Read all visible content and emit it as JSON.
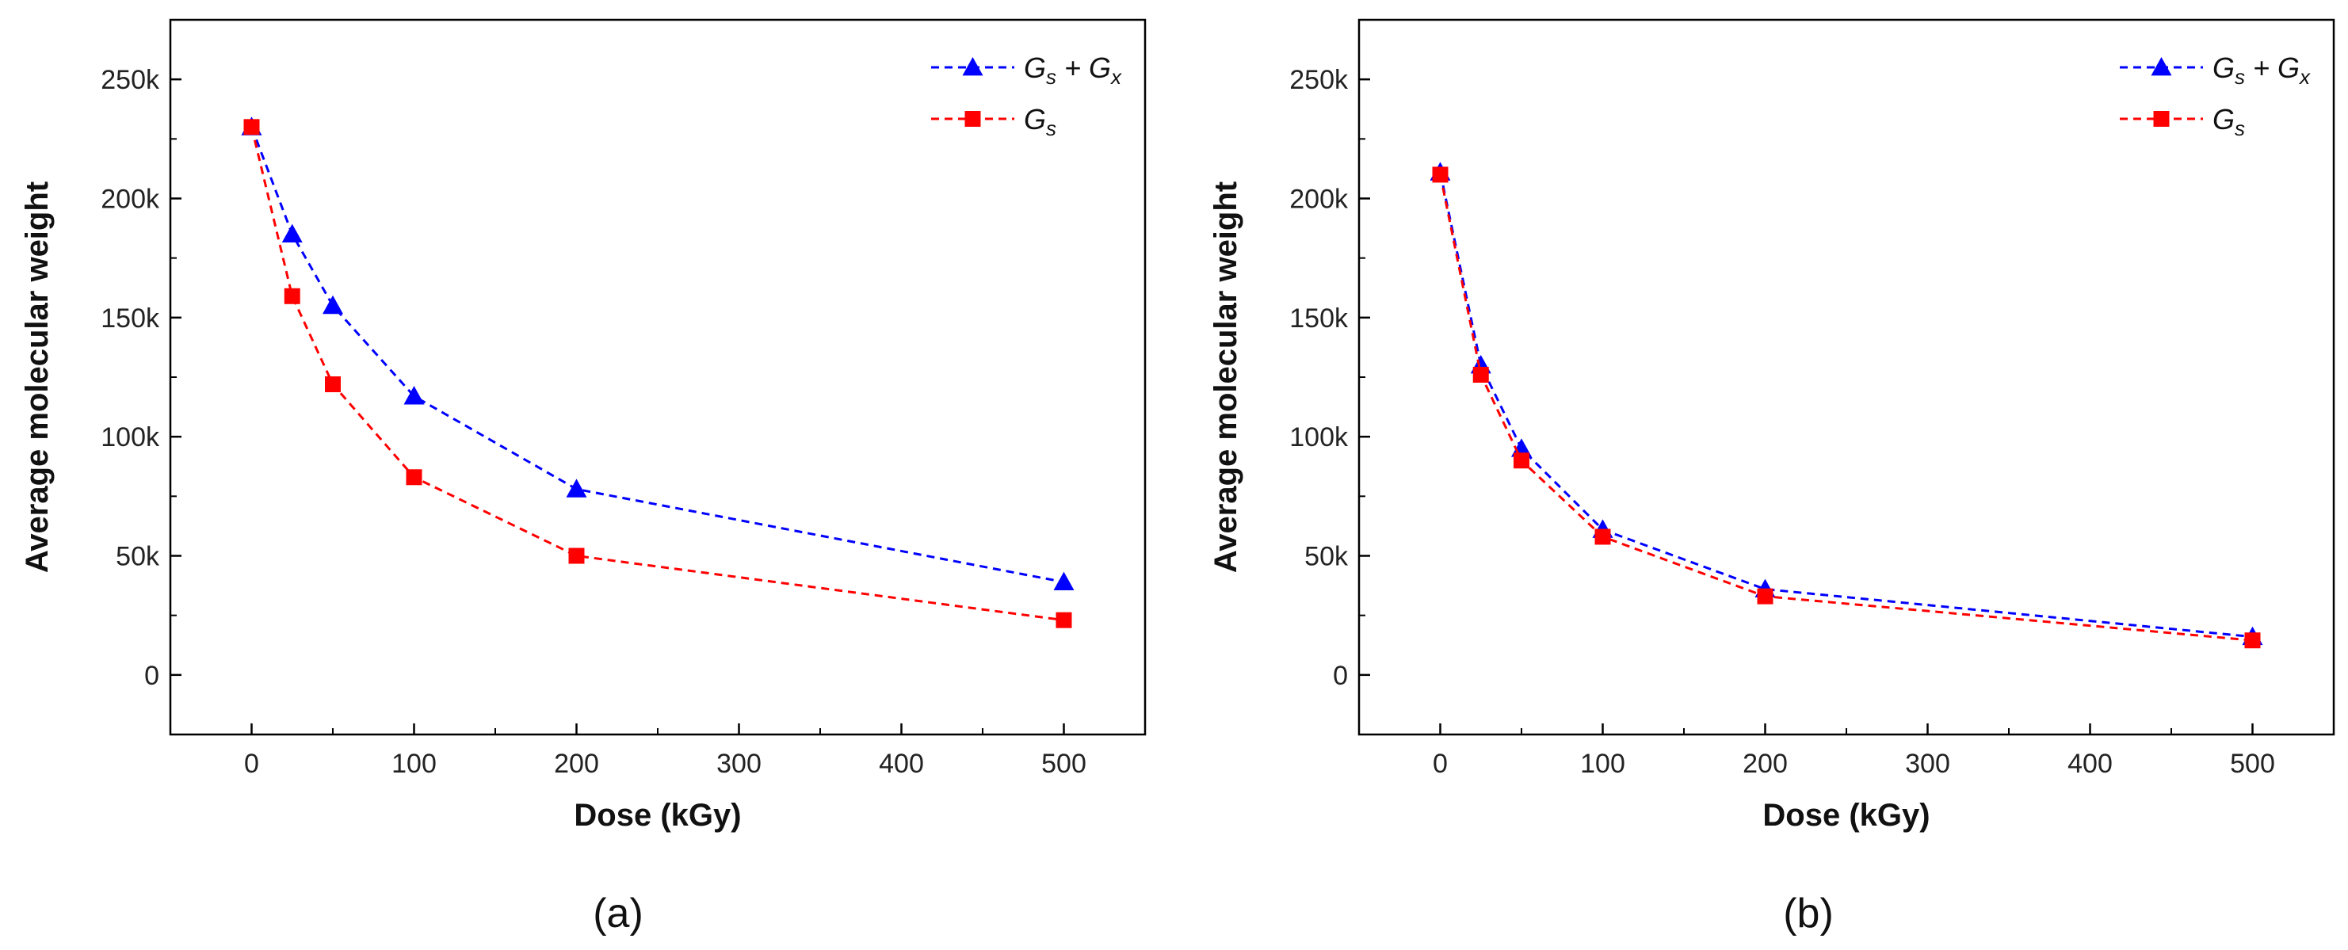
{
  "chart_data": [
    {
      "type": "line",
      "panel_label": "(a)",
      "xlabel": "Dose (kGy)",
      "ylabel": "Average molecular weight",
      "x": [
        0,
        25,
        50,
        100,
        200,
        500
      ],
      "x_positions": [
        0,
        25,
        50,
        100,
        200,
        500
      ],
      "x_ticks": [
        "0",
        "100",
        "200",
        "300",
        "400",
        "500"
      ],
      "y_ticks": [
        "0",
        "50k",
        "100k",
        "150k",
        "200k",
        "250k"
      ],
      "xlim": [
        -50,
        550
      ],
      "ylim": [
        -25000,
        275000
      ],
      "legend_position": "top-right",
      "series": [
        {
          "name_main": "G",
          "name_sub": "s",
          "name_plus": " + G",
          "name_sub2": "x",
          "color": "#0000ff",
          "marker": "triangle",
          "values": [
            230000,
            185000,
            155000,
            117000,
            78000,
            39000
          ]
        },
        {
          "name_main": "G",
          "name_sub": "s",
          "name_plus": "",
          "name_sub2": "",
          "color": "#ff0000",
          "marker": "square",
          "values": [
            230000,
            159000,
            122000,
            83000,
            50000,
            23000
          ]
        }
      ]
    },
    {
      "type": "line",
      "panel_label": "(b)",
      "xlabel": "Dose (kGy)",
      "ylabel": "Average molecular weight",
      "x": [
        0,
        25,
        50,
        100,
        200,
        500
      ],
      "x_positions": [
        0,
        25,
        50,
        100,
        200,
        500
      ],
      "x_ticks": [
        "0",
        "100",
        "200",
        "300",
        "400",
        "500"
      ],
      "y_ticks": [
        "0",
        "50k",
        "100k",
        "150k",
        "200k",
        "250k"
      ],
      "xlim": [
        -50,
        550
      ],
      "ylim": [
        -25000,
        275000
      ],
      "legend_position": "top-right",
      "series": [
        {
          "name_main": "G",
          "name_sub": "s",
          "name_plus": " + G",
          "name_sub2": "x",
          "color": "#0000ff",
          "marker": "triangle",
          "values": [
            211000,
            130000,
            95000,
            61000,
            36000,
            16000
          ]
        },
        {
          "name_main": "G",
          "name_sub": "s",
          "name_plus": "",
          "name_sub2": "",
          "color": "#ff0000",
          "marker": "square",
          "values": [
            210000,
            126000,
            90000,
            58000,
            33000,
            14500
          ]
        }
      ]
    }
  ]
}
